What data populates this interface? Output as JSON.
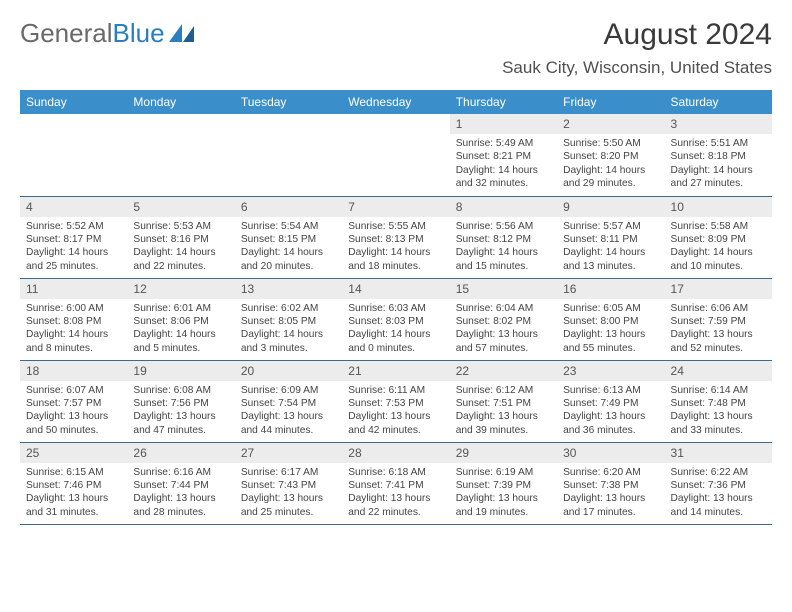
{
  "logo": {
    "part1": "General",
    "part2": "Blue"
  },
  "header": {
    "title": "August 2024",
    "subtitle": "Sauk City, Wisconsin, United States"
  },
  "colors": {
    "header_bg": "#3a8fca",
    "header_text": "#ffffff",
    "daynum_bg": "#ececec",
    "row_border": "#3a6a8f",
    "logo_grey": "#6a6a6a",
    "logo_blue": "#2a7fbf"
  },
  "days_of_week": [
    "Sunday",
    "Monday",
    "Tuesday",
    "Wednesday",
    "Thursday",
    "Friday",
    "Saturday"
  ],
  "weeks": [
    [
      {
        "blank": true
      },
      {
        "blank": true
      },
      {
        "blank": true
      },
      {
        "blank": true
      },
      {
        "n": "1",
        "sunrise": "5:49 AM",
        "sunset": "8:21 PM",
        "daylight": "14 hours and 32 minutes."
      },
      {
        "n": "2",
        "sunrise": "5:50 AM",
        "sunset": "8:20 PM",
        "daylight": "14 hours and 29 minutes."
      },
      {
        "n": "3",
        "sunrise": "5:51 AM",
        "sunset": "8:18 PM",
        "daylight": "14 hours and 27 minutes."
      }
    ],
    [
      {
        "n": "4",
        "sunrise": "5:52 AM",
        "sunset": "8:17 PM",
        "daylight": "14 hours and 25 minutes."
      },
      {
        "n": "5",
        "sunrise": "5:53 AM",
        "sunset": "8:16 PM",
        "daylight": "14 hours and 22 minutes."
      },
      {
        "n": "6",
        "sunrise": "5:54 AM",
        "sunset": "8:15 PM",
        "daylight": "14 hours and 20 minutes."
      },
      {
        "n": "7",
        "sunrise": "5:55 AM",
        "sunset": "8:13 PM",
        "daylight": "14 hours and 18 minutes."
      },
      {
        "n": "8",
        "sunrise": "5:56 AM",
        "sunset": "8:12 PM",
        "daylight": "14 hours and 15 minutes."
      },
      {
        "n": "9",
        "sunrise": "5:57 AM",
        "sunset": "8:11 PM",
        "daylight": "14 hours and 13 minutes."
      },
      {
        "n": "10",
        "sunrise": "5:58 AM",
        "sunset": "8:09 PM",
        "daylight": "14 hours and 10 minutes."
      }
    ],
    [
      {
        "n": "11",
        "sunrise": "6:00 AM",
        "sunset": "8:08 PM",
        "daylight": "14 hours and 8 minutes."
      },
      {
        "n": "12",
        "sunrise": "6:01 AM",
        "sunset": "8:06 PM",
        "daylight": "14 hours and 5 minutes."
      },
      {
        "n": "13",
        "sunrise": "6:02 AM",
        "sunset": "8:05 PM",
        "daylight": "14 hours and 3 minutes."
      },
      {
        "n": "14",
        "sunrise": "6:03 AM",
        "sunset": "8:03 PM",
        "daylight": "14 hours and 0 minutes."
      },
      {
        "n": "15",
        "sunrise": "6:04 AM",
        "sunset": "8:02 PM",
        "daylight": "13 hours and 57 minutes."
      },
      {
        "n": "16",
        "sunrise": "6:05 AM",
        "sunset": "8:00 PM",
        "daylight": "13 hours and 55 minutes."
      },
      {
        "n": "17",
        "sunrise": "6:06 AM",
        "sunset": "7:59 PM",
        "daylight": "13 hours and 52 minutes."
      }
    ],
    [
      {
        "n": "18",
        "sunrise": "6:07 AM",
        "sunset": "7:57 PM",
        "daylight": "13 hours and 50 minutes."
      },
      {
        "n": "19",
        "sunrise": "6:08 AM",
        "sunset": "7:56 PM",
        "daylight": "13 hours and 47 minutes."
      },
      {
        "n": "20",
        "sunrise": "6:09 AM",
        "sunset": "7:54 PM",
        "daylight": "13 hours and 44 minutes."
      },
      {
        "n": "21",
        "sunrise": "6:11 AM",
        "sunset": "7:53 PM",
        "daylight": "13 hours and 42 minutes."
      },
      {
        "n": "22",
        "sunrise": "6:12 AM",
        "sunset": "7:51 PM",
        "daylight": "13 hours and 39 minutes."
      },
      {
        "n": "23",
        "sunrise": "6:13 AM",
        "sunset": "7:49 PM",
        "daylight": "13 hours and 36 minutes."
      },
      {
        "n": "24",
        "sunrise": "6:14 AM",
        "sunset": "7:48 PM",
        "daylight": "13 hours and 33 minutes."
      }
    ],
    [
      {
        "n": "25",
        "sunrise": "6:15 AM",
        "sunset": "7:46 PM",
        "daylight": "13 hours and 31 minutes."
      },
      {
        "n": "26",
        "sunrise": "6:16 AM",
        "sunset": "7:44 PM",
        "daylight": "13 hours and 28 minutes."
      },
      {
        "n": "27",
        "sunrise": "6:17 AM",
        "sunset": "7:43 PM",
        "daylight": "13 hours and 25 minutes."
      },
      {
        "n": "28",
        "sunrise": "6:18 AM",
        "sunset": "7:41 PM",
        "daylight": "13 hours and 22 minutes."
      },
      {
        "n": "29",
        "sunrise": "6:19 AM",
        "sunset": "7:39 PM",
        "daylight": "13 hours and 19 minutes."
      },
      {
        "n": "30",
        "sunrise": "6:20 AM",
        "sunset": "7:38 PM",
        "daylight": "13 hours and 17 minutes."
      },
      {
        "n": "31",
        "sunrise": "6:22 AM",
        "sunset": "7:36 PM",
        "daylight": "13 hours and 14 minutes."
      }
    ]
  ],
  "labels": {
    "sunrise": "Sunrise: ",
    "sunset": "Sunset: ",
    "daylight": "Daylight: "
  }
}
